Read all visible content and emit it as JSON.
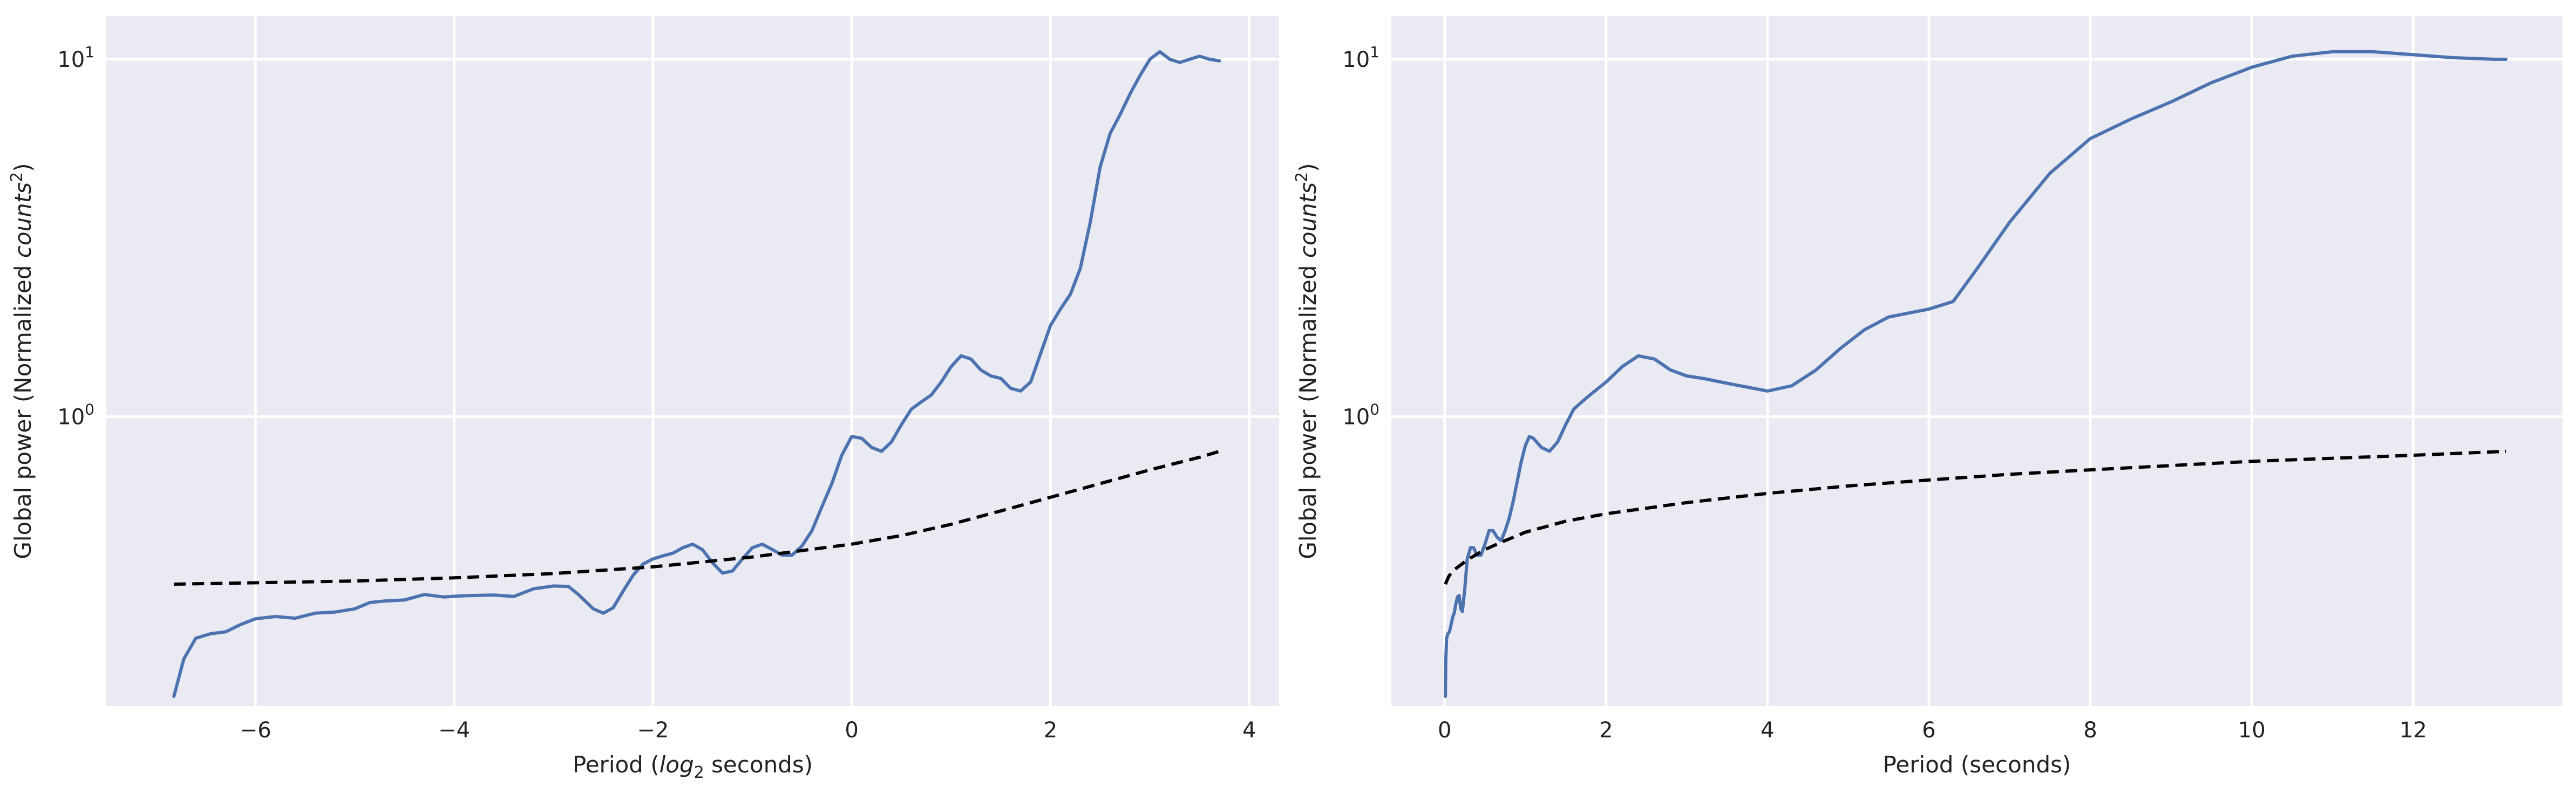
{
  "chart_data": [
    {
      "type": "line",
      "title": "",
      "xlabel": "Period (",
      "xlabel_italic": "log",
      "xlabel_sub": "2",
      "xlabel_tail": " seconds)",
      "ylabel": "Global power (Normalized ",
      "ylabel_italic": "counts",
      "ylabel_sup": "2",
      "ylabel_tail": ")",
      "yscale": "log",
      "xlim": [
        -7.5,
        4.3
      ],
      "ylim": [
        0.155,
        13.2
      ],
      "grid": true,
      "legend": "none",
      "xticks": [
        -6,
        -4,
        -2,
        0,
        2,
        4
      ],
      "xtick_labels": [
        "−6",
        "−4",
        "−2",
        "0",
        "2",
        "4"
      ],
      "yticks": [
        {
          "value": 10,
          "base": "10",
          "exp": "1"
        },
        {
          "value": 1,
          "base": "10",
          "exp": "0"
        }
      ],
      "series": [
        {
          "style": "solid",
          "color": "#4c72b0",
          "x": [
            -6.82,
            -6.72,
            -6.6,
            -6.45,
            -6.3,
            -6.15,
            -6.0,
            -5.8,
            -5.6,
            -5.4,
            -5.2,
            -5.0,
            -4.85,
            -4.7,
            -4.5,
            -4.3,
            -4.1,
            -3.95,
            -3.8,
            -3.6,
            -3.4,
            -3.2,
            -3.0,
            -2.85,
            -2.75,
            -2.6,
            -2.5,
            -2.4,
            -2.3,
            -2.2,
            -2.1,
            -2.0,
            -1.9,
            -1.8,
            -1.7,
            -1.6,
            -1.5,
            -1.4,
            -1.3,
            -1.2,
            -1.1,
            -1.0,
            -0.9,
            -0.8,
            -0.7,
            -0.6,
            -0.5,
            -0.4,
            -0.3,
            -0.2,
            -0.1,
            0.0,
            0.1,
            0.2,
            0.3,
            0.4,
            0.5,
            0.6,
            0.7,
            0.8,
            0.9,
            1.0,
            1.1,
            1.2,
            1.3,
            1.4,
            1.5,
            1.6,
            1.7,
            1.8,
            1.9,
            2.0,
            2.1,
            2.2,
            2.3,
            2.4,
            2.5,
            2.6,
            2.7,
            2.8,
            2.9,
            3.0,
            3.1,
            3.2,
            3.3,
            3.4,
            3.5,
            3.6,
            3.7
          ],
          "y": [
            0.165,
            0.21,
            0.24,
            0.247,
            0.25,
            0.262,
            0.272,
            0.276,
            0.273,
            0.282,
            0.284,
            0.29,
            0.302,
            0.305,
            0.307,
            0.318,
            0.313,
            0.315,
            0.316,
            0.317,
            0.314,
            0.33,
            0.336,
            0.335,
            0.318,
            0.29,
            0.282,
            0.292,
            0.325,
            0.36,
            0.387,
            0.4,
            0.408,
            0.415,
            0.43,
            0.44,
            0.424,
            0.39,
            0.365,
            0.37,
            0.4,
            0.43,
            0.44,
            0.425,
            0.41,
            0.41,
            0.435,
            0.48,
            0.56,
            0.65,
            0.78,
            0.88,
            0.87,
            0.82,
            0.8,
            0.85,
            0.95,
            1.05,
            1.1,
            1.15,
            1.25,
            1.38,
            1.48,
            1.45,
            1.35,
            1.3,
            1.28,
            1.2,
            1.18,
            1.25,
            1.5,
            1.8,
            2.0,
            2.2,
            2.6,
            3.5,
            5.0,
            6.2,
            7.0,
            8.0,
            9.0,
            10.0,
            10.5,
            10.0,
            9.8,
            10.0,
            10.2,
            10.0,
            9.9
          ]
        },
        {
          "style": "dashed",
          "color": "#000000",
          "x": [
            -6.82,
            -6.0,
            -5.0,
            -4.0,
            -3.0,
            -2.0,
            -1.0,
            0.0,
            0.5,
            1.0,
            1.5,
            2.0,
            2.5,
            3.0,
            3.5,
            3.7
          ],
          "y": [
            0.34,
            0.343,
            0.347,
            0.354,
            0.364,
            0.38,
            0.405,
            0.44,
            0.465,
            0.5,
            0.545,
            0.595,
            0.65,
            0.71,
            0.77,
            0.8
          ]
        }
      ]
    },
    {
      "type": "line",
      "title": "",
      "xlabel": "Period (seconds)",
      "ylabel": "Global power (Normalized ",
      "ylabel_italic": "counts",
      "ylabel_sup": "2",
      "ylabel_tail": ")",
      "yscale": "log",
      "xlim": [
        -0.66,
        13.85
      ],
      "ylim": [
        0.155,
        13.2
      ],
      "grid": true,
      "legend": "none",
      "xticks": [
        0,
        2,
        4,
        6,
        8,
        10,
        12
      ],
      "xtick_labels": [
        "0",
        "2",
        "4",
        "6",
        "8",
        "10",
        "12"
      ],
      "yticks": [
        {
          "value": 10,
          "base": "10",
          "exp": "1"
        },
        {
          "value": 1,
          "base": "10",
          "exp": "0"
        }
      ],
      "series": [
        {
          "style": "solid",
          "color": "#4c72b0",
          "x": [
            0.009,
            0.015,
            0.025,
            0.04,
            0.06,
            0.08,
            0.1,
            0.12,
            0.14,
            0.16,
            0.18,
            0.2,
            0.22,
            0.25,
            0.28,
            0.32,
            0.36,
            0.4,
            0.45,
            0.5,
            0.55,
            0.6,
            0.65,
            0.7,
            0.75,
            0.8,
            0.85,
            0.9,
            0.95,
            1.0,
            1.05,
            1.1,
            1.2,
            1.3,
            1.4,
            1.5,
            1.6,
            1.7,
            1.8,
            2.0,
            2.2,
            2.4,
            2.6,
            2.8,
            3.0,
            3.2,
            3.5,
            4.0,
            4.3,
            4.6,
            4.9,
            5.2,
            5.5,
            6.0,
            6.3,
            6.6,
            7.0,
            7.5,
            8.0,
            8.5,
            9.0,
            9.5,
            10.0,
            10.5,
            11.0,
            11.5,
            12.0,
            12.5,
            13.0,
            13.15
          ],
          "y": [
            0.165,
            0.21,
            0.24,
            0.247,
            0.25,
            0.262,
            0.275,
            0.283,
            0.3,
            0.313,
            0.316,
            0.29,
            0.285,
            0.33,
            0.4,
            0.43,
            0.43,
            0.41,
            0.41,
            0.44,
            0.48,
            0.48,
            0.46,
            0.45,
            0.48,
            0.52,
            0.58,
            0.66,
            0.75,
            0.83,
            0.88,
            0.87,
            0.82,
            0.8,
            0.85,
            0.95,
            1.05,
            1.1,
            1.15,
            1.25,
            1.38,
            1.48,
            1.45,
            1.35,
            1.3,
            1.28,
            1.24,
            1.18,
            1.22,
            1.35,
            1.55,
            1.75,
            1.9,
            2.0,
            2.1,
            2.6,
            3.5,
            4.8,
            6.0,
            6.8,
            7.6,
            8.6,
            9.5,
            10.2,
            10.5,
            10.5,
            10.3,
            10.1,
            10.0,
            10.0
          ]
        },
        {
          "style": "dashed",
          "color": "#000000",
          "x": [
            0.009,
            0.05,
            0.1,
            0.2,
            0.3,
            0.5,
            0.75,
            1.0,
            1.5,
            2.0,
            3.0,
            4.0,
            5.0,
            6.0,
            7.0,
            8.0,
            9.0,
            10.0,
            11.0,
            12.0,
            13.15
          ],
          "y": [
            0.34,
            0.357,
            0.37,
            0.385,
            0.4,
            0.425,
            0.45,
            0.475,
            0.51,
            0.535,
            0.575,
            0.61,
            0.64,
            0.665,
            0.69,
            0.71,
            0.73,
            0.75,
            0.765,
            0.78,
            0.8
          ]
        }
      ]
    }
  ]
}
